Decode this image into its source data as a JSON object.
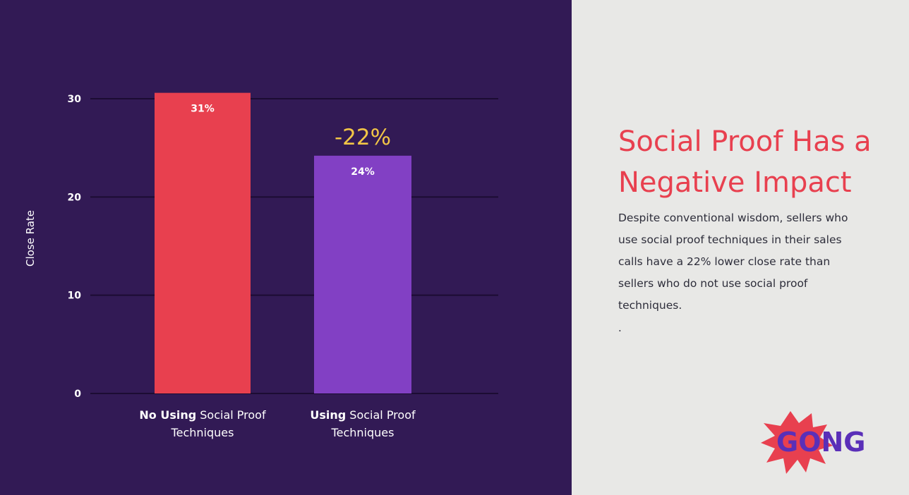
{
  "theme": {
    "chart_bg": "#321a55",
    "text_panel_bg": "#e8e8e6",
    "accent_red": "#e8404f",
    "accent_purple": "#8240c4",
    "delta_color": "#f2c646",
    "grid_color": "#1c0c33",
    "axis_text": "#ffffff"
  },
  "chart_data": {
    "type": "bar",
    "ylabel": "Close Rate",
    "ylim": [
      0,
      30
    ],
    "yticks": [
      "0",
      "10",
      "20",
      "30"
    ],
    "categories": [
      {
        "bold": "No Using",
        "rest": " Social Proof",
        "line2": "Techniques"
      },
      {
        "bold": "Using",
        "rest": " Social Proof",
        "line2": "Techniques"
      }
    ],
    "values": [
      30.6,
      24.2
    ],
    "data_labels": [
      "31%",
      "24%"
    ],
    "bar_colors": [
      "#e8404f",
      "#8240c4"
    ],
    "annotation": {
      "text": "-22%",
      "bar_index": 1
    }
  },
  "text_panel": {
    "title_line1": "Social Proof Has a",
    "title_line2": "Negative Impact",
    "body": "Despite conventional wisdom, sellers who use social proof techniques in their sales calls have a 22% lower close rate than sellers who do not use social proof techniques.",
    "trailing_dot": "."
  },
  "logo": {
    "text_part1": "GO",
    "text_part2": "NG",
    "burst_color": "#e8404f",
    "text_color": "#5a2fb8"
  }
}
